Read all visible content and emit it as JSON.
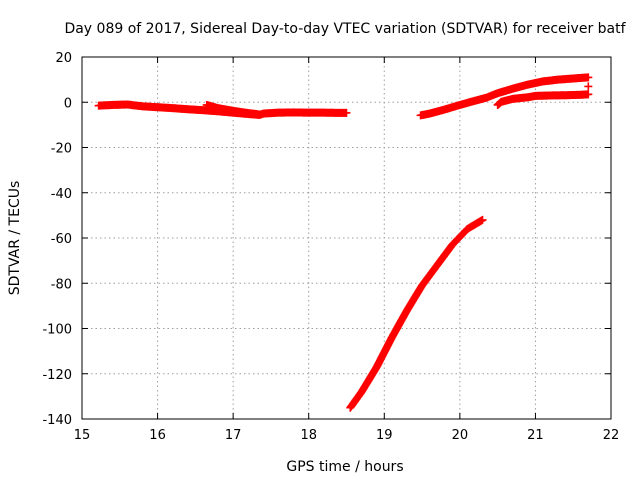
{
  "chart_data": {
    "type": "scatter",
    "title": "Day 089 of 2017, Sidereal Day-to-day VTEC variation (SDTVAR) for receiver batf",
    "xlabel": "GPS time / hours",
    "ylabel": "SDTVAR / TECUs",
    "xlim": [
      15,
      22
    ],
    "ylim": [
      -140,
      20
    ],
    "xticks": [
      15,
      16,
      17,
      18,
      19,
      20,
      21,
      22
    ],
    "yticks": [
      20,
      0,
      -20,
      -40,
      -60,
      -80,
      -100,
      -120,
      -140
    ],
    "grid": true,
    "legend": "none",
    "marker": "+",
    "color": "#ff0000",
    "series": [
      {
        "points": [
          [
            15.22,
            -1.5
          ],
          [
            15.4,
            -1.2
          ],
          [
            15.6,
            -1.0
          ],
          [
            15.8,
            -1.8
          ],
          [
            16.0,
            -2.2
          ],
          [
            16.2,
            -2.6
          ],
          [
            16.4,
            -3.1
          ],
          [
            16.6,
            -3.5
          ],
          [
            16.8,
            -4.0
          ],
          [
            17.0,
            -4.6
          ],
          [
            17.2,
            -5.2
          ],
          [
            17.35,
            -5.6
          ],
          [
            17.4,
            -5.0
          ],
          [
            17.6,
            -4.6
          ],
          [
            17.8,
            -4.5
          ],
          [
            18.0,
            -4.6
          ],
          [
            18.2,
            -4.6
          ],
          [
            18.4,
            -4.7
          ],
          [
            18.5,
            -4.7
          ]
        ]
      },
      {
        "points": [
          [
            16.65,
            -1.2
          ],
          [
            16.8,
            -2.6
          ],
          [
            17.0,
            -3.8
          ],
          [
            17.2,
            -4.8
          ],
          [
            17.35,
            -5.4
          ]
        ]
      },
      {
        "points": [
          [
            19.48,
            -5.8
          ],
          [
            19.6,
            -5.0
          ],
          [
            19.8,
            -3.2
          ],
          [
            20.0,
            -1.2
          ],
          [
            20.15,
            0.2
          ],
          [
            20.35,
            2.0
          ],
          [
            20.5,
            4.0
          ],
          [
            20.7,
            6.0
          ],
          [
            20.9,
            7.8
          ],
          [
            21.1,
            9.2
          ],
          [
            21.3,
            10.0
          ],
          [
            21.5,
            10.5
          ],
          [
            21.7,
            11.0
          ]
        ]
      },
      {
        "points": [
          [
            20.5,
            -1.2
          ],
          [
            20.55,
            0.2
          ],
          [
            20.7,
            1.5
          ],
          [
            20.9,
            2.2
          ],
          [
            21.0,
            2.8
          ],
          [
            21.2,
            3.0
          ],
          [
            21.4,
            3.1
          ],
          [
            21.6,
            3.3
          ],
          [
            21.7,
            3.5
          ]
        ]
      },
      {
        "points": [
          [
            21.7,
            7.0
          ]
        ]
      },
      {
        "points": [
          [
            18.55,
            -135
          ],
          [
            18.7,
            -128
          ],
          [
            18.9,
            -117
          ],
          [
            19.1,
            -104
          ],
          [
            19.3,
            -92
          ],
          [
            19.5,
            -81
          ],
          [
            19.7,
            -72
          ],
          [
            19.9,
            -63
          ],
          [
            20.1,
            -56
          ],
          [
            20.3,
            -52
          ]
        ]
      }
    ]
  }
}
